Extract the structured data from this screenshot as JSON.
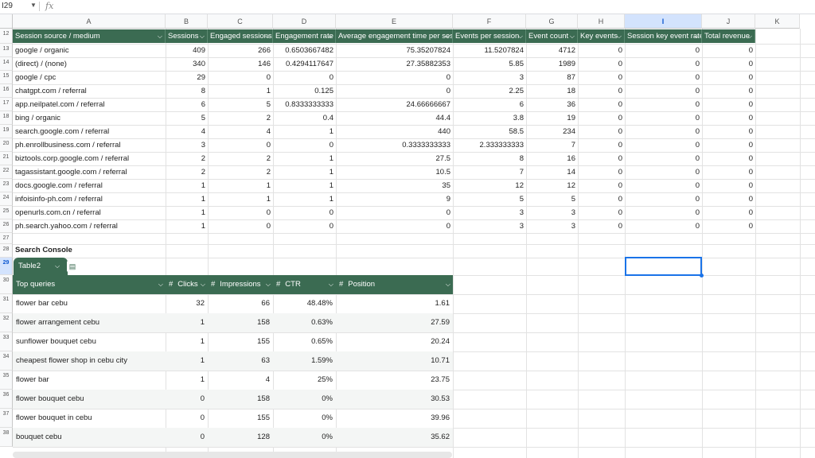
{
  "name_box": {
    "value": "I29",
    "fx_label": "fx"
  },
  "columns": [
    "A",
    "B",
    "C",
    "D",
    "E",
    "F",
    "G",
    "H",
    "I",
    "J",
    "K"
  ],
  "selected_column": "I",
  "row_numbers": [
    "12",
    "13",
    "14",
    "15",
    "16",
    "17",
    "18",
    "19",
    "20",
    "21",
    "22",
    "23",
    "24",
    "25",
    "26",
    "27",
    "28",
    "29",
    "30",
    "31",
    "32",
    "33",
    "34",
    "35",
    "36",
    "37",
    "38"
  ],
  "selected_row": "29",
  "table1": {
    "headers": [
      "Session source / medium",
      "Sessions",
      "Engaged sessions",
      "Engagement rate",
      "Average engagement time per session",
      "Events per session",
      "Event count",
      "Key events",
      "Session key event rate",
      "Total revenue"
    ],
    "rows": [
      [
        "google / organic",
        "409",
        "266",
        "0.6503667482",
        "75.35207824",
        "11.5207824",
        "4712",
        "0",
        "0",
        "0"
      ],
      [
        "(direct) / (none)",
        "340",
        "146",
        "0.4294117647",
        "27.35882353",
        "5.85",
        "1989",
        "0",
        "0",
        "0"
      ],
      [
        "google / cpc",
        "29",
        "0",
        "0",
        "0",
        "3",
        "87",
        "0",
        "0",
        "0"
      ],
      [
        "chatgpt.com / referral",
        "8",
        "1",
        "0.125",
        "0",
        "2.25",
        "18",
        "0",
        "0",
        "0"
      ],
      [
        "app.neilpatel.com / referral",
        "6",
        "5",
        "0.8333333333",
        "24.66666667",
        "6",
        "36",
        "0",
        "0",
        "0"
      ],
      [
        "bing / organic",
        "5",
        "2",
        "0.4",
        "44.4",
        "3.8",
        "19",
        "0",
        "0",
        "0"
      ],
      [
        "search.google.com / referral",
        "4",
        "4",
        "1",
        "440",
        "58.5",
        "234",
        "0",
        "0",
        "0"
      ],
      [
        "ph.enrollbusiness.com / referral",
        "3",
        "0",
        "0",
        "0.3333333333",
        "2.333333333",
        "7",
        "0",
        "0",
        "0"
      ],
      [
        "biztools.corp.google.com / referral",
        "2",
        "2",
        "1",
        "27.5",
        "8",
        "16",
        "0",
        "0",
        "0"
      ],
      [
        "tagassistant.google.com / referral",
        "2",
        "2",
        "1",
        "10.5",
        "7",
        "14",
        "0",
        "0",
        "0"
      ],
      [
        "docs.google.com / referral",
        "1",
        "1",
        "1",
        "35",
        "12",
        "12",
        "0",
        "0",
        "0"
      ],
      [
        "infoisinfo-ph.com / referral",
        "1",
        "1",
        "1",
        "9",
        "5",
        "5",
        "0",
        "0",
        "0"
      ],
      [
        "openurls.com.cn / referral",
        "1",
        "0",
        "0",
        "0",
        "3",
        "3",
        "0",
        "0",
        "0"
      ],
      [
        "ph.search.yahoo.com / referral",
        "1",
        "0",
        "0",
        "0",
        "3",
        "3",
        "0",
        "0",
        "0"
      ]
    ]
  },
  "section_title": "Search Console",
  "table2": {
    "tab_name": "Table2",
    "headers": [
      "Top queries",
      "Clicks",
      "Impressions",
      "CTR",
      "Position"
    ],
    "rows": [
      [
        "flower bar cebu",
        "32",
        "66",
        "48.48%",
        "1.61"
      ],
      [
        "flower arrangement cebu",
        "1",
        "158",
        "0.63%",
        "27.59"
      ],
      [
        "sunflower bouquet cebu",
        "1",
        "155",
        "0.65%",
        "20.24"
      ],
      [
        "cheapest flower shop in cebu city",
        "1",
        "63",
        "1.59%",
        "10.71"
      ],
      [
        "flower bar",
        "1",
        "4",
        "25%",
        "23.75"
      ],
      [
        "flower bouquet cebu",
        "0",
        "158",
        "0%",
        "30.53"
      ],
      [
        "flower bouquet in cebu",
        "0",
        "155",
        "0%",
        "39.96"
      ],
      [
        "bouquet cebu",
        "0",
        "128",
        "0%",
        "35.62"
      ]
    ]
  },
  "colors": {
    "table_header": "#3b6b52",
    "selection": "#1a73e8"
  }
}
